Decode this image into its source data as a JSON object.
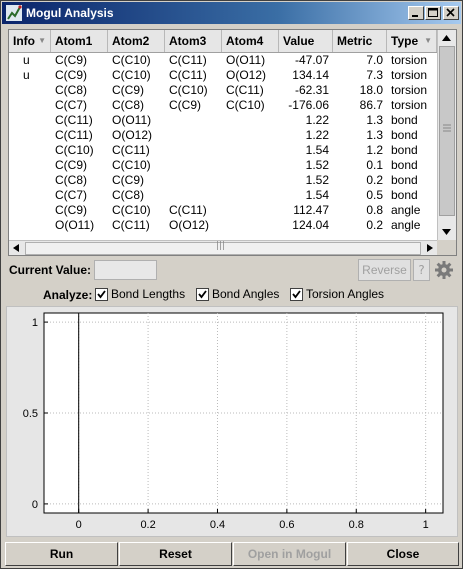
{
  "window": {
    "title": "Mogul Analysis",
    "icon": "mogul-app-icon",
    "controls": [
      "minimize-icon",
      "maximize-icon",
      "close-icon"
    ]
  },
  "table": {
    "columns": [
      {
        "key": "info",
        "label": "Info",
        "sort": "▼"
      },
      {
        "key": "atom1",
        "label": "Atom1"
      },
      {
        "key": "atom2",
        "label": "Atom2"
      },
      {
        "key": "atom3",
        "label": "Atom3"
      },
      {
        "key": "atom4",
        "label": "Atom4"
      },
      {
        "key": "value",
        "label": "Value"
      },
      {
        "key": "metric",
        "label": "Metric"
      },
      {
        "key": "type",
        "label": "Type",
        "sort": "▼"
      }
    ],
    "rows": [
      {
        "info": "u",
        "atom1": "C(C9)",
        "atom2": "C(C10)",
        "atom3": "C(C11)",
        "atom4": "O(O11)",
        "value": "-47.07",
        "metric": "7.0",
        "type": "torsion"
      },
      {
        "info": "u",
        "atom1": "C(C9)",
        "atom2": "C(C10)",
        "atom3": "C(C11)",
        "atom4": "O(O12)",
        "value": "134.14",
        "metric": "7.3",
        "type": "torsion"
      },
      {
        "info": "",
        "atom1": "C(C8)",
        "atom2": "C(C9)",
        "atom3": "C(C10)",
        "atom4": "C(C11)",
        "value": "-62.31",
        "metric": "18.0",
        "type": "torsion"
      },
      {
        "info": "",
        "atom1": "C(C7)",
        "atom2": "C(C8)",
        "atom3": "C(C9)",
        "atom4": "C(C10)",
        "value": "-176.06",
        "metric": "86.7",
        "type": "torsion"
      },
      {
        "info": "",
        "atom1": "C(C11)",
        "atom2": "O(O11)",
        "atom3": "",
        "atom4": "",
        "value": "1.22",
        "metric": "1.3",
        "type": "bond"
      },
      {
        "info": "",
        "atom1": "C(C11)",
        "atom2": "O(O12)",
        "atom3": "",
        "atom4": "",
        "value": "1.22",
        "metric": "1.3",
        "type": "bond"
      },
      {
        "info": "",
        "atom1": "C(C10)",
        "atom2": "C(C11)",
        "atom3": "",
        "atom4": "",
        "value": "1.54",
        "metric": "1.2",
        "type": "bond"
      },
      {
        "info": "",
        "atom1": "C(C9)",
        "atom2": "C(C10)",
        "atom3": "",
        "atom4": "",
        "value": "1.52",
        "metric": "0.1",
        "type": "bond"
      },
      {
        "info": "",
        "atom1": "C(C8)",
        "atom2": "C(C9)",
        "atom3": "",
        "atom4": "",
        "value": "1.52",
        "metric": "0.2",
        "type": "bond"
      },
      {
        "info": "",
        "atom1": "C(C7)",
        "atom2": "C(C8)",
        "atom3": "",
        "atom4": "",
        "value": "1.54",
        "metric": "0.5",
        "type": "bond"
      },
      {
        "info": "",
        "atom1": "C(C9)",
        "atom2": "C(C10)",
        "atom3": "C(C11)",
        "atom4": "",
        "value": "112.47",
        "metric": "0.8",
        "type": "angle"
      },
      {
        "info": "",
        "atom1": "O(O11)",
        "atom2": "C(C11)",
        "atom3": "O(O12)",
        "atom4": "",
        "value": "124.04",
        "metric": "0.2",
        "type": "angle"
      }
    ],
    "grip": "|||"
  },
  "current_value": {
    "label": "Current Value:",
    "value": ""
  },
  "reverse_label": "Reverse",
  "help_label": "?",
  "analyze": {
    "label": "Analyze:",
    "options": [
      {
        "label": "Bond Lengths",
        "checked": true
      },
      {
        "label": "Bond Angles",
        "checked": true
      },
      {
        "label": "Torsion Angles",
        "checked": true
      }
    ]
  },
  "chart_data": {
    "type": "line",
    "title": "",
    "xlabel": "",
    "ylabel": "",
    "xlim": [
      -0.1,
      1.05
    ],
    "ylim": [
      -0.05,
      1.05
    ],
    "x_ticks": [
      "0",
      "0.2",
      "0.4",
      "0.6",
      "0.8",
      "1"
    ],
    "y_ticks": [
      "0",
      "0.5",
      "1"
    ],
    "grid": true,
    "series": []
  },
  "buttons": {
    "run": "Run",
    "reset": "Reset",
    "open_in_mogul": "Open in Mogul",
    "close": "Close"
  }
}
